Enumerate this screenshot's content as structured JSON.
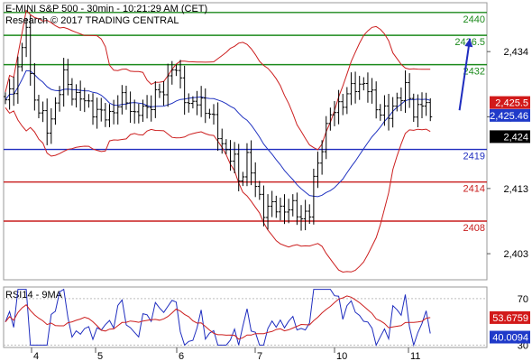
{
  "chart_data": {
    "type": "candlestick",
    "header": {
      "line1": "E-MINI S&P 500 - 30min - 10:21:29 AM (CET)",
      "line2": "Research © 2017 TRADING CENTRAL"
    },
    "price_axis": {
      "range": [
        2399,
        2441.5
      ],
      "ticks": [
        {
          "value": 2434,
          "label": "2,434"
        },
        {
          "value": 2424,
          "label": "2,424"
        },
        {
          "value": 2413,
          "label": "2,413"
        },
        {
          "value": 2403,
          "label": "2,403"
        }
      ]
    },
    "x_axis": {
      "bars": 103,
      "ticks": [
        {
          "bar": 7,
          "label": "4"
        },
        {
          "bar": 23,
          "label": "5"
        },
        {
          "bar": 43,
          "label": "6"
        },
        {
          "bar": 62,
          "label": "7"
        },
        {
          "bar": 81,
          "label": "10"
        },
        {
          "bar": 101,
          "label": "11"
        }
      ]
    },
    "levels": [
      {
        "value": 2440,
        "label": "2440",
        "color": "#1c8a1c"
      },
      {
        "value": 2436.5,
        "label": "2436.5",
        "color": "#1c8a1c"
      },
      {
        "value": 2432,
        "label": "2432",
        "color": "#1c8a1c"
      },
      {
        "value": 2419,
        "label": "2419",
        "color": "#1f2dbf"
      },
      {
        "value": 2414,
        "label": "2414",
        "color": "#c81e1e"
      },
      {
        "value": 2408,
        "label": "2408",
        "color": "#c81e1e"
      }
    ],
    "price_tags": [
      {
        "value": 2425.5,
        "label": "2,425.5",
        "color": "#d21a1a"
      },
      {
        "value": 2425.46,
        "label": "2,425.46",
        "color": "#1f3ac9"
      },
      {
        "value": 2424,
        "label": "2,424",
        "color": "#000000"
      }
    ],
    "arrow": {
      "from_bar": 109,
      "from_value": 2425,
      "to_bar": 111.5,
      "to_value": 2436,
      "color": "#1f2dbf"
    },
    "close_anchors": [
      [
        0,
        2426
      ],
      [
        2,
        2429
      ],
      [
        4,
        2434
      ],
      [
        5,
        2438
      ],
      [
        6,
        2430
      ],
      [
        8,
        2425
      ],
      [
        10,
        2422
      ],
      [
        12,
        2426
      ],
      [
        14,
        2430
      ],
      [
        17,
        2427
      ],
      [
        20,
        2426
      ],
      [
        23,
        2424
      ],
      [
        26,
        2425
      ],
      [
        29,
        2427
      ],
      [
        31,
        2424
      ],
      [
        33,
        2425
      ],
      [
        36,
        2427
      ],
      [
        38,
        2428
      ],
      [
        40,
        2432
      ],
      [
        42,
        2429
      ],
      [
        44,
        2426
      ],
      [
        47,
        2426
      ],
      [
        49,
        2425
      ],
      [
        51,
        2421
      ],
      [
        53,
        2419
      ],
      [
        55,
        2417
      ],
      [
        56,
        2414
      ],
      [
        58,
        2418
      ],
      [
        60,
        2413
      ],
      [
        62,
        2410
      ],
      [
        65,
        2410
      ],
      [
        68,
        2410
      ],
      [
        71,
        2409
      ],
      [
        73,
        2409
      ],
      [
        74,
        2414
      ],
      [
        76,
        2420
      ],
      [
        78,
        2424
      ],
      [
        80,
        2426
      ],
      [
        82,
        2427
      ],
      [
        84,
        2429
      ],
      [
        86,
        2429
      ],
      [
        88,
        2427
      ],
      [
        90,
        2425
      ],
      [
        92,
        2424
      ],
      [
        94,
        2427
      ],
      [
        96,
        2428
      ],
      [
        98,
        2425
      ],
      [
        100,
        2426
      ],
      [
        102,
        2425.5
      ],
      [
        103,
        2424
      ]
    ],
    "rsi": {
      "label": "RSI14 - 9MA",
      "range": [
        28,
        80
      ],
      "ticks": [
        {
          "value": 70,
          "label": "70"
        },
        {
          "value": 30,
          "label": "30"
        }
      ],
      "tags": [
        {
          "value": 53.6759,
          "label": "53.6759",
          "color": "#d21a1a"
        },
        {
          "value": 40.0094,
          "label": "40.0094",
          "color": "#1f3ac9"
        }
      ]
    }
  }
}
